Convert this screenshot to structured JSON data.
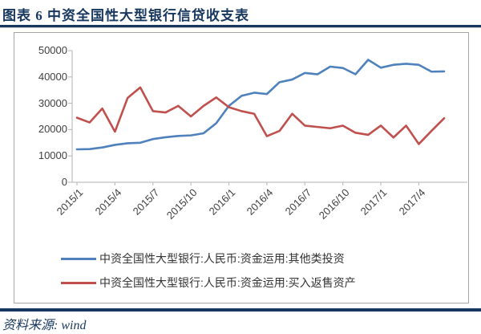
{
  "header": {
    "title": "图表 6  中资全国性大型银行信贷收支表"
  },
  "footer": {
    "source_label": "资料来源: wind"
  },
  "colors": {
    "accent_navy": "#17375E",
    "series_blue": "#4F81BD",
    "series_red": "#C0504D",
    "axis_gray": "#BFBFBF",
    "tick_label_gray": "#404040"
  },
  "chart_data": {
    "type": "line",
    "title": "",
    "xlabel": "",
    "ylabel": "",
    "ylim": [
      0,
      50000
    ],
    "y_ticks": [
      0,
      10000,
      20000,
      30000,
      40000,
      50000
    ],
    "grid": false,
    "legend_position": "bottom",
    "x": [
      "2015/1",
      "2015/2",
      "2015/3",
      "2015/4",
      "2015/5",
      "2015/6",
      "2015/7",
      "2015/8",
      "2015/9",
      "2015/10",
      "2015/11",
      "2015/12",
      "2016/1",
      "2016/2",
      "2016/3",
      "2016/4",
      "2016/5",
      "2016/6",
      "2016/7",
      "2016/8",
      "2016/9",
      "2016/10",
      "2016/11",
      "2016/12",
      "2017/1",
      "2017/2",
      "2017/3",
      "2017/4",
      "2017/5",
      "2017/6"
    ],
    "x_tick_labels": [
      "2015/1",
      "2015/4",
      "2015/7",
      "2015/10",
      "2016/1",
      "2016/4",
      "2016/7",
      "2016/10",
      "2017/1",
      "2017/4"
    ],
    "x_label_interval": 3,
    "series": [
      {
        "name": "中资全国性大型银行:人民币:资金运用:其他类投资",
        "color": "#4F81BD",
        "values": [
          12500,
          12600,
          13200,
          14200,
          14800,
          15000,
          16400,
          17100,
          17600,
          17800,
          18600,
          22400,
          29000,
          32800,
          34000,
          33500,
          38000,
          39000,
          41500,
          41000,
          43900,
          43400,
          41000,
          46500,
          43500,
          44600,
          45000,
          44600,
          42000,
          42100
        ]
      },
      {
        "name": "中资全国性大型银行:人民币:资金运用:买入返售资产",
        "color": "#C0504D",
        "values": [
          24500,
          22700,
          28000,
          19200,
          32000,
          36000,
          27000,
          26500,
          29000,
          25000,
          29000,
          32200,
          28500,
          27000,
          26000,
          17500,
          19500,
          26000,
          21500,
          21000,
          20500,
          21500,
          18800,
          18000,
          21500,
          17000,
          21500,
          14500,
          19500,
          24300
        ]
      }
    ]
  }
}
